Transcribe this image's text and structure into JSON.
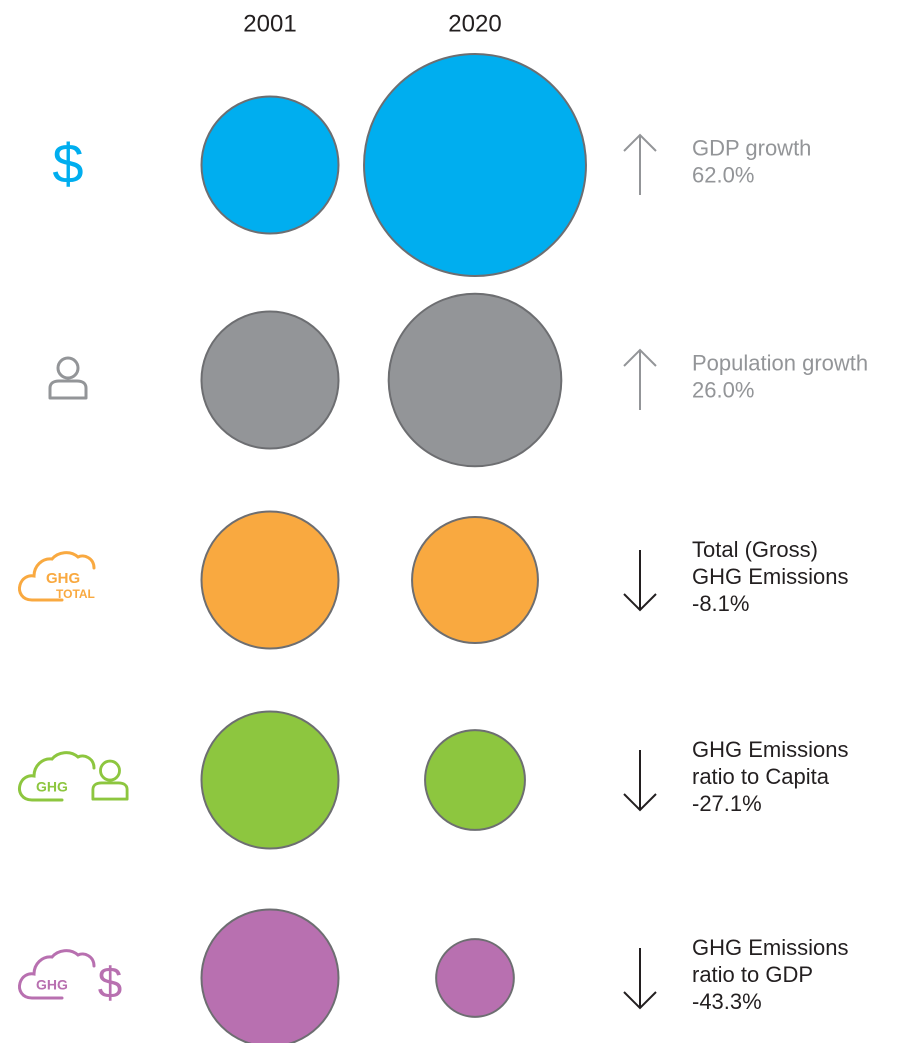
{
  "columns": [
    "2001",
    "2020"
  ],
  "rows": [
    {
      "label": [
        "GDP growth"
      ],
      "change": 62.0,
      "change_label": "62.0%",
      "color": "#00aeef",
      "text_color": "#939598",
      "icon": "dollar",
      "icon_texts": [
        "$"
      ]
    },
    {
      "label": [
        "Population growth"
      ],
      "change": 26.0,
      "change_label": "26.0%",
      "color": "#939598",
      "text_color": "#939598",
      "icon": "person",
      "icon_texts": []
    },
    {
      "label": [
        "Total (Gross)",
        "GHG Emissions"
      ],
      "change": -8.1,
      "change_label": "-8.1%",
      "color": "#f9a940",
      "text_color": "#231f20",
      "icon": "cloud-total",
      "icon_texts": [
        "GHG",
        "TOTAL"
      ]
    },
    {
      "label": [
        "GHG Emissions",
        "ratio to Capita"
      ],
      "change": -27.1,
      "change_label": "-27.1%",
      "color": "#8dc63f",
      "text_color": "#231f20",
      "icon": "cloud-person",
      "icon_texts": [
        "GHG"
      ]
    },
    {
      "label": [
        "GHG Emissions",
        "ratio to GDP"
      ],
      "change": -43.3,
      "change_label": "-43.3%",
      "color": "#b870b0",
      "text_color": "#231f20",
      "icon": "cloud-dollar",
      "icon_texts": [
        "GHG",
        "$"
      ]
    }
  ]
}
